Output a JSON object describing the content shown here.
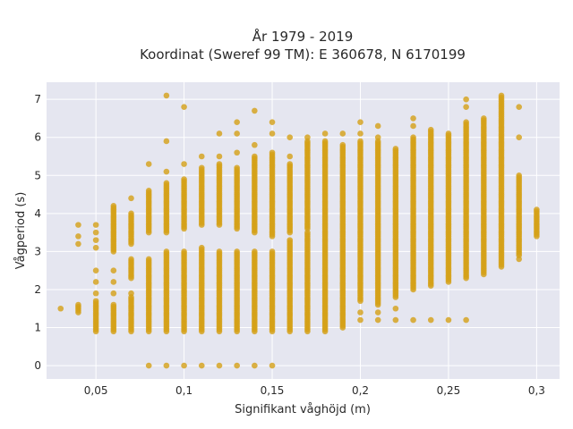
{
  "chart_data": {
    "type": "scatter",
    "title_line1": "År 1979 - 2019",
    "title_line2": "Koordinat (Sweref 99 TM): E 360678, N 6170199",
    "xlabel": "Signifikant våghöjd (m)",
    "ylabel": "Vågperiod (s)",
    "xlim": [
      0.022,
      0.313
    ],
    "ylim": [
      -0.35,
      7.45
    ],
    "x_ticks": [
      0.05,
      0.1,
      0.15,
      0.2,
      0.25,
      0.3
    ],
    "x_tick_labels": [
      "0,05",
      "0,1",
      "0,15",
      "0,2",
      "0,25",
      "0,3"
    ],
    "y_ticks": [
      0,
      1,
      2,
      3,
      4,
      5,
      6,
      7
    ],
    "y_tick_labels": [
      "0",
      "1",
      "2",
      "3",
      "4",
      "5",
      "6",
      "7"
    ],
    "grid": true,
    "legend": "none",
    "colors": {
      "marker": "#D4A017",
      "plot_bg": "#E5E6F0",
      "grid": "#ffffff",
      "text": "#2a2a2a"
    },
    "note": "Each column is a set of points at a given wave height; segments give continuous period ranges observed, isolated values listed separately.",
    "columns": [
      {
        "x": 0.03,
        "ranges": [],
        "points": [
          1.5
        ]
      },
      {
        "x": 0.04,
        "ranges": [
          [
            1.4,
            1.6
          ]
        ],
        "points": [
          3.2,
          3.4,
          3.7
        ]
      },
      {
        "x": 0.05,
        "ranges": [
          [
            0.9,
            1.7
          ]
        ],
        "points": [
          1.9,
          2.2,
          2.5,
          3.1,
          3.3,
          3.5,
          3.7
        ]
      },
      {
        "x": 0.06,
        "ranges": [
          [
            0.9,
            1.6
          ],
          [
            3.0,
            4.2
          ]
        ],
        "points": [
          1.9,
          2.2,
          2.5
        ]
      },
      {
        "x": 0.07,
        "ranges": [
          [
            0.9,
            1.8
          ],
          [
            2.3,
            2.8
          ],
          [
            3.2,
            4.0
          ]
        ],
        "points": [
          1.9,
          4.4
        ]
      },
      {
        "x": 0.08,
        "ranges": [
          [
            0.9,
            2.8
          ],
          [
            3.5,
            4.6
          ]
        ],
        "points": [
          0,
          5.3
        ]
      },
      {
        "x": 0.09,
        "ranges": [
          [
            0.9,
            3.0
          ],
          [
            3.5,
            4.8
          ]
        ],
        "points": [
          0,
          5.1,
          5.9,
          7.1
        ]
      },
      {
        "x": 0.1,
        "ranges": [
          [
            0.9,
            3.0
          ],
          [
            3.6,
            4.9
          ]
        ],
        "points": [
          0,
          5.3,
          6.8
        ]
      },
      {
        "x": 0.11,
        "ranges": [
          [
            0.9,
            3.1
          ],
          [
            3.7,
            5.2
          ]
        ],
        "points": [
          0,
          5.5
        ]
      },
      {
        "x": 0.12,
        "ranges": [
          [
            0.9,
            3.0
          ],
          [
            3.7,
            5.3
          ]
        ],
        "points": [
          0,
          5.5,
          6.1
        ]
      },
      {
        "x": 0.13,
        "ranges": [
          [
            0.9,
            3.0
          ],
          [
            3.6,
            5.2
          ]
        ],
        "points": [
          0,
          5.6,
          6.1,
          6.4
        ]
      },
      {
        "x": 0.14,
        "ranges": [
          [
            0.9,
            3.0
          ],
          [
            3.5,
            5.5
          ]
        ],
        "points": [
          0,
          5.8,
          6.7
        ]
      },
      {
        "x": 0.15,
        "ranges": [
          [
            0.9,
            3.0
          ],
          [
            3.4,
            5.6
          ]
        ],
        "points": [
          0,
          6.1,
          6.4
        ]
      },
      {
        "x": 0.16,
        "ranges": [
          [
            0.9,
            3.3
          ],
          [
            3.5,
            5.3
          ]
        ],
        "points": [
          5.5,
          6.0
        ]
      },
      {
        "x": 0.17,
        "ranges": [
          [
            0.9,
            3.5
          ],
          [
            3.6,
            5.9
          ]
        ],
        "points": [
          6.0
        ]
      },
      {
        "x": 0.18,
        "ranges": [
          [
            0.9,
            5.9
          ]
        ],
        "points": [
          6.1
        ]
      },
      {
        "x": 0.19,
        "ranges": [
          [
            1.0,
            5.8
          ]
        ],
        "points": [
          6.1
        ]
      },
      {
        "x": 0.2,
        "ranges": [
          [
            1.7,
            5.9
          ]
        ],
        "points": [
          1.2,
          1.4,
          6.1,
          6.4
        ]
      },
      {
        "x": 0.21,
        "ranges": [
          [
            1.6,
            5.9
          ]
        ],
        "points": [
          1.2,
          1.4,
          6.0,
          6.3
        ]
      },
      {
        "x": 0.22,
        "ranges": [
          [
            1.8,
            5.7
          ]
        ],
        "points": [
          1.2,
          1.5
        ]
      },
      {
        "x": 0.23,
        "ranges": [
          [
            2.0,
            6.0
          ]
        ],
        "points": [
          1.2,
          6.3,
          6.5
        ]
      },
      {
        "x": 0.24,
        "ranges": [
          [
            2.1,
            6.2
          ]
        ],
        "points": [
          1.2
        ]
      },
      {
        "x": 0.25,
        "ranges": [
          [
            2.2,
            6.1
          ]
        ],
        "points": [
          1.2
        ]
      },
      {
        "x": 0.26,
        "ranges": [
          [
            2.3,
            6.4
          ]
        ],
        "points": [
          1.2,
          6.8,
          7.0
        ]
      },
      {
        "x": 0.27,
        "ranges": [
          [
            2.4,
            6.5
          ]
        ],
        "points": []
      },
      {
        "x": 0.28,
        "ranges": [
          [
            2.6,
            7.1
          ]
        ],
        "points": []
      },
      {
        "x": 0.29,
        "ranges": [
          [
            2.9,
            5.0
          ]
        ],
        "points": [
          2.8,
          6.0,
          6.8
        ]
      },
      {
        "x": 0.3,
        "ranges": [
          [
            3.4,
            4.1
          ]
        ],
        "points": []
      }
    ]
  }
}
